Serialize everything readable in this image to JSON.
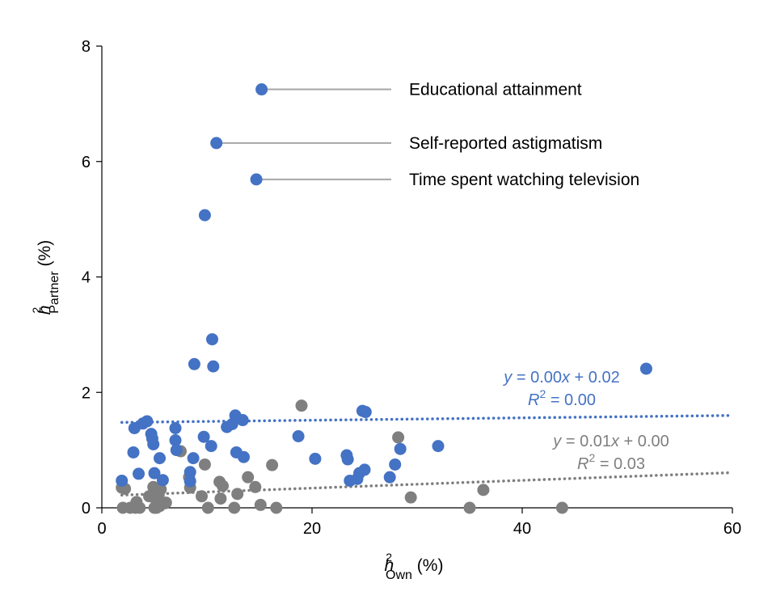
{
  "chart_data": {
    "type": "scatter",
    "x_label": {
      "base": "h",
      "sup": "2",
      "sub": "Own",
      "unit": " (%)"
    },
    "y_label": {
      "base": "h",
      "sup": "2",
      "sub": "Partner",
      "unit": " (%)"
    },
    "xlim": [
      0,
      60
    ],
    "ylim": [
      0,
      8
    ],
    "x_ticks": [
      "0",
      "20",
      "40",
      "60"
    ],
    "y_ticks": [
      "0",
      "2",
      "4",
      "6",
      "8"
    ],
    "grid": false,
    "colors": {
      "blue": "#4472c4",
      "gray": "#7f7f7f",
      "annotation_line": "#a6a6a6"
    },
    "annotations": [
      {
        "text": "Educational attainment",
        "point": [
          15.2,
          7.25
        ]
      },
      {
        "text": "Self-reported astigmatism",
        "point": [
          10.9,
          6.32
        ]
      },
      {
        "text": "Time spent watching television",
        "point": [
          14.7,
          5.69
        ]
      }
    ],
    "series": [
      {
        "color": "#4472c4",
        "trend": {
          "x": [
            1.9,
            60
          ],
          "y": [
            1.48,
            1.6
          ]
        },
        "equation": {
          "lead": "y",
          "rhs": " = 0.00",
          "xvar": "x",
          "tail": " + 0.02"
        },
        "r2": {
          "base": "R",
          "sup": "2",
          "rest": " = 0.00"
        },
        "points": [
          [
            1.9,
            0.47
          ],
          [
            3.0,
            0.96
          ],
          [
            3.1,
            1.38
          ],
          [
            3.5,
            0.59
          ],
          [
            3.9,
            1.46
          ],
          [
            4.3,
            1.5
          ],
          [
            4.7,
            1.28
          ],
          [
            4.8,
            1.2
          ],
          [
            4.9,
            1.1
          ],
          [
            5.0,
            0.6
          ],
          [
            5.5,
            0.86
          ],
          [
            5.8,
            0.48
          ],
          [
            7.0,
            1.38
          ],
          [
            7.0,
            1.17
          ],
          [
            7.1,
            1.0
          ],
          [
            8.4,
            0.62
          ],
          [
            8.4,
            0.46
          ],
          [
            8.7,
            0.86
          ],
          [
            8.8,
            2.49
          ],
          [
            9.7,
            1.23
          ],
          [
            9.8,
            5.07
          ],
          [
            10.5,
            2.92
          ],
          [
            10.4,
            1.07
          ],
          [
            10.6,
            2.45
          ],
          [
            10.9,
            6.32
          ],
          [
            11.9,
            1.4
          ],
          [
            12.4,
            1.45
          ],
          [
            12.7,
            1.6
          ],
          [
            12.8,
            0.96
          ],
          [
            13.4,
            1.52
          ],
          [
            13.5,
            0.88
          ],
          [
            14.7,
            5.69
          ],
          [
            15.2,
            7.25
          ],
          [
            18.7,
            1.24
          ],
          [
            20.3,
            0.85
          ],
          [
            23.3,
            0.91
          ],
          [
            23.4,
            0.84
          ],
          [
            23.6,
            0.47
          ],
          [
            24.3,
            0.5
          ],
          [
            24.5,
            0.6
          ],
          [
            24.8,
            1.68
          ],
          [
            25.0,
            0.66
          ],
          [
            25.1,
            1.66
          ],
          [
            27.4,
            0.53
          ],
          [
            27.9,
            0.75
          ],
          [
            28.4,
            1.02
          ],
          [
            32.0,
            1.07
          ],
          [
            51.8,
            2.41
          ]
        ]
      },
      {
        "color": "#7f7f7f",
        "trend": {
          "x": [
            1.9,
            60
          ],
          "y": [
            0.22,
            0.61
          ]
        },
        "equation": {
          "lead": "y",
          "rhs": " = 0.01",
          "xvar": "x",
          "tail": " + 0.00"
        },
        "r2": {
          "base": "R",
          "sup": "2",
          "rest": " = 0.03"
        },
        "points": [
          [
            1.9,
            0.35
          ],
          [
            2.0,
            0.0
          ],
          [
            2.2,
            0.33
          ],
          [
            2.7,
            0.0
          ],
          [
            3.2,
            0.0
          ],
          [
            3.3,
            0.1
          ],
          [
            3.6,
            0.0
          ],
          [
            4.5,
            0.2
          ],
          [
            4.9,
            0.36
          ],
          [
            5.0,
            0.0
          ],
          [
            5.2,
            0.12
          ],
          [
            5.2,
            0.0
          ],
          [
            5.4,
            0.22
          ],
          [
            5.5,
            0.03
          ],
          [
            5.6,
            0.32
          ],
          [
            6.0,
            0.08
          ],
          [
            6.1,
            0.09
          ],
          [
            7.5,
            0.98
          ],
          [
            8.3,
            0.53
          ],
          [
            8.4,
            0.35
          ],
          [
            9.5,
            0.2
          ],
          [
            9.8,
            0.75
          ],
          [
            10.1,
            0.0
          ],
          [
            11.2,
            0.45
          ],
          [
            11.3,
            0.16
          ],
          [
            11.5,
            0.38
          ],
          [
            12.6,
            0.0
          ],
          [
            12.9,
            0.24
          ],
          [
            13.9,
            0.53
          ],
          [
            14.6,
            0.36
          ],
          [
            15.1,
            0.05
          ],
          [
            16.2,
            0.74
          ],
          [
            16.6,
            0.0
          ],
          [
            19.0,
            1.77
          ],
          [
            28.2,
            1.22
          ],
          [
            29.4,
            0.18
          ],
          [
            35.0,
            0.0
          ],
          [
            36.3,
            0.31
          ],
          [
            43.8,
            0.0
          ]
        ]
      }
    ]
  }
}
